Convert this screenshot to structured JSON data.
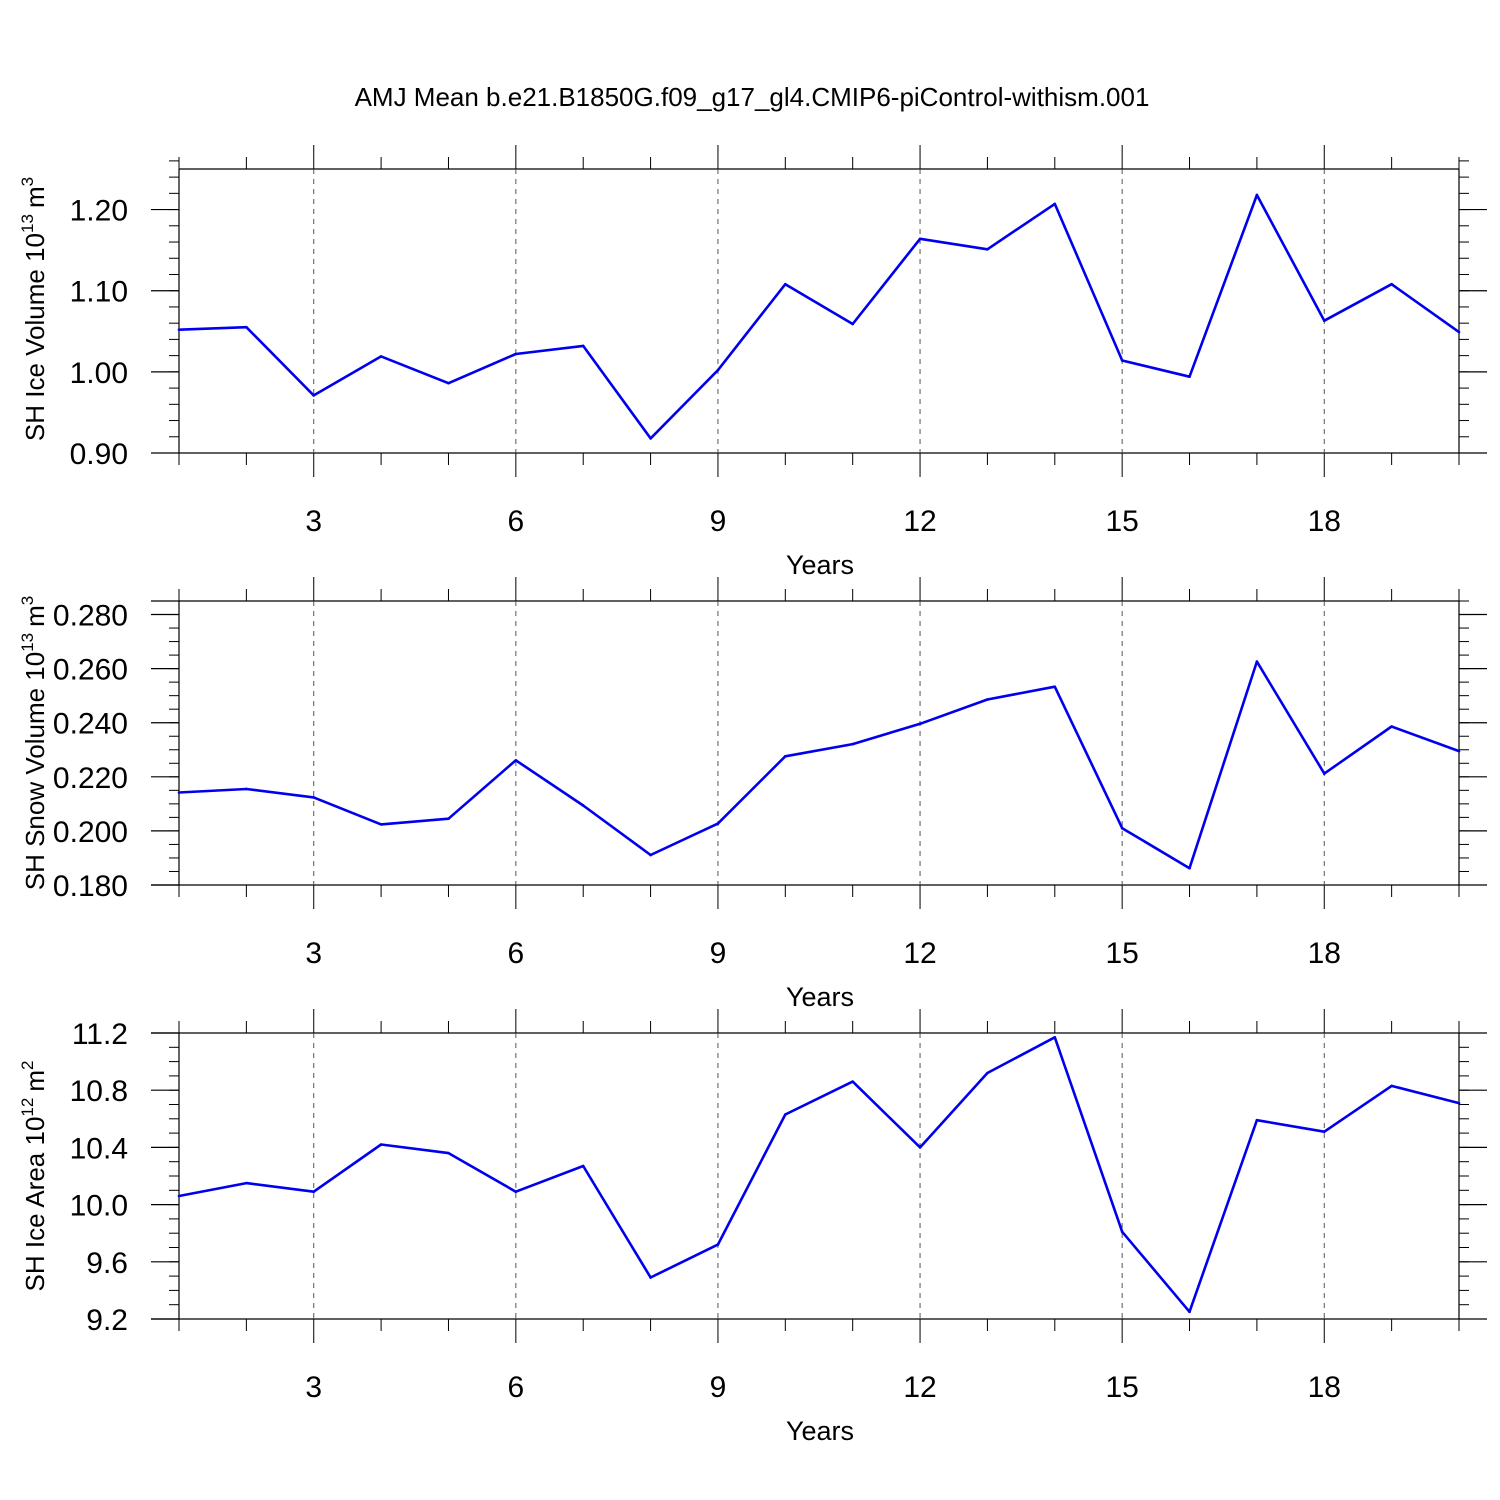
{
  "title": "AMJ Mean b.e21.B1850G.f09_g17_gl4.CMIP6-piControl-withism.001",
  "line_color": "#0000ee",
  "chart_data": [
    {
      "type": "line",
      "ylabel_main": "SH Ice Volume 10",
      "ylabel_exp": "13",
      "ylabel_unit": "m",
      "ylabel_unit_exp": "3",
      "xlabel": "Years",
      "xlim": [
        1,
        20
      ],
      "ylim": [
        0.9,
        1.25
      ],
      "yticks": [
        0.9,
        1.0,
        1.1,
        1.2
      ],
      "ytick_labels": [
        "0.90",
        "1.00",
        "1.10",
        "1.20"
      ],
      "yminor_step": 0.02,
      "xticks": [
        3,
        6,
        9,
        12,
        15,
        18
      ],
      "xtick_labels": [
        "3",
        "6",
        "9",
        "12",
        "15",
        "18"
      ],
      "x": [
        1,
        2,
        3,
        4,
        5,
        6,
        7,
        8,
        9,
        10,
        11,
        12,
        13,
        14,
        15,
        16,
        17,
        18,
        19,
        20
      ],
      "values": [
        1.052,
        1.055,
        0.971,
        1.019,
        0.986,
        1.022,
        1.032,
        0.918,
        1.002,
        1.108,
        1.059,
        1.164,
        1.151,
        1.207,
        1.014,
        0.994,
        1.218,
        1.063,
        1.108,
        1.049
      ]
    },
    {
      "type": "line",
      "ylabel_main": "SH Snow Volume 10",
      "ylabel_exp": "13",
      "ylabel_unit": "m",
      "ylabel_unit_exp": "3",
      "xlabel": "Years",
      "xlim": [
        1,
        20
      ],
      "ylim": [
        0.18,
        0.285
      ],
      "yticks": [
        0.18,
        0.2,
        0.22,
        0.24,
        0.26,
        0.28
      ],
      "ytick_labels": [
        "0.180",
        "0.200",
        "0.220",
        "0.240",
        "0.260",
        "0.280"
      ],
      "yminor_step": 0.005,
      "xticks": [
        3,
        6,
        9,
        12,
        15,
        18
      ],
      "xtick_labels": [
        "3",
        "6",
        "9",
        "12",
        "15",
        "18"
      ],
      "x": [
        1,
        2,
        3,
        4,
        5,
        6,
        7,
        8,
        9,
        10,
        11,
        12,
        13,
        14,
        15,
        16,
        17,
        18,
        19,
        20
      ],
      "values": [
        0.2142,
        0.2155,
        0.2124,
        0.2024,
        0.2045,
        0.2261,
        0.2094,
        0.1911,
        0.2027,
        0.2276,
        0.2321,
        0.2396,
        0.2486,
        0.2533,
        0.201,
        0.1862,
        0.2626,
        0.2212,
        0.2386,
        0.2295
      ]
    },
    {
      "type": "line",
      "ylabel_main": "SH Ice Area 10",
      "ylabel_exp": "12",
      "ylabel_unit": "m",
      "ylabel_unit_exp": "2",
      "xlabel": "Years",
      "xlim": [
        1,
        20
      ],
      "ylim": [
        9.2,
        11.2
      ],
      "yticks": [
        9.2,
        9.6,
        10.0,
        10.4,
        10.8,
        11.2
      ],
      "ytick_labels": [
        "9.2",
        "9.6",
        "10.0",
        "10.4",
        "10.8",
        "11.2"
      ],
      "yminor_step": 0.1,
      "xticks": [
        3,
        6,
        9,
        12,
        15,
        18
      ],
      "xtick_labels": [
        "3",
        "6",
        "9",
        "12",
        "15",
        "18"
      ],
      "x": [
        1,
        2,
        3,
        4,
        5,
        6,
        7,
        8,
        9,
        10,
        11,
        12,
        13,
        14,
        15,
        16,
        17,
        18,
        19,
        20
      ],
      "values": [
        10.06,
        10.15,
        10.09,
        10.42,
        10.36,
        10.09,
        10.27,
        9.49,
        9.72,
        10.63,
        10.86,
        10.4,
        10.92,
        11.17,
        9.81,
        9.25,
        10.59,
        10.51,
        10.83,
        10.71
      ]
    }
  ]
}
